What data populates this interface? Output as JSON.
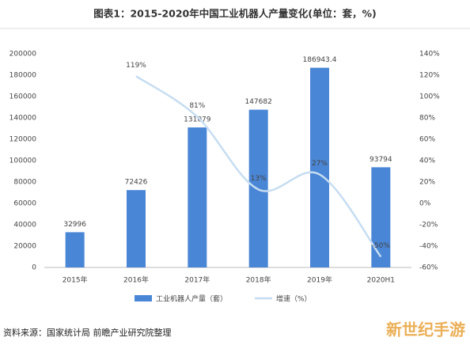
{
  "chart_data": {
    "type": "bar_line",
    "title": "图表1：2015-2020年中国工业机器人产量变化(单位：套，%)",
    "source": "资料来源：国家统计局 前瞻产业研究院整理",
    "watermark": "新世纪手游",
    "categories": [
      "2015年",
      "2016年",
      "2017年",
      "2018年",
      "2019年",
      "2020H1"
    ],
    "series": [
      {
        "name": "工业机器人产量（套）",
        "type": "bar",
        "color": "#4a86d6",
        "values": [
          32996,
          72426,
          131079,
          147682,
          186943.4,
          93794
        ]
      },
      {
        "name": "增速（%）",
        "type": "line",
        "axis": "y2",
        "color": "#c6ddf1",
        "values": [
          null,
          119,
          81,
          13,
          27,
          -50
        ],
        "value_labels": [
          null,
          "119%",
          "81%",
          "13%",
          "27%",
          "-50%"
        ]
      }
    ],
    "ylim": [
      0,
      200000
    ],
    "yticks": [
      0,
      20000,
      40000,
      60000,
      80000,
      100000,
      120000,
      140000,
      160000,
      180000,
      200000
    ],
    "y2lim": [
      -60,
      140
    ],
    "y2ticks": [
      {
        "value": -60,
        "label": "-60%"
      },
      {
        "value": -40,
        "label": "-40%"
      },
      {
        "value": -20,
        "label": "-20%"
      },
      {
        "value": 0,
        "label": "0%"
      },
      {
        "value": 20,
        "label": "20%"
      },
      {
        "value": 40,
        "label": "40%"
      },
      {
        "value": 60,
        "label": "60%"
      },
      {
        "value": 80,
        "label": "80%"
      },
      {
        "value": 100,
        "label": "100%"
      },
      {
        "value": 120,
        "label": "120%"
      },
      {
        "value": 140,
        "label": "140%"
      }
    ],
    "grid": false
  }
}
